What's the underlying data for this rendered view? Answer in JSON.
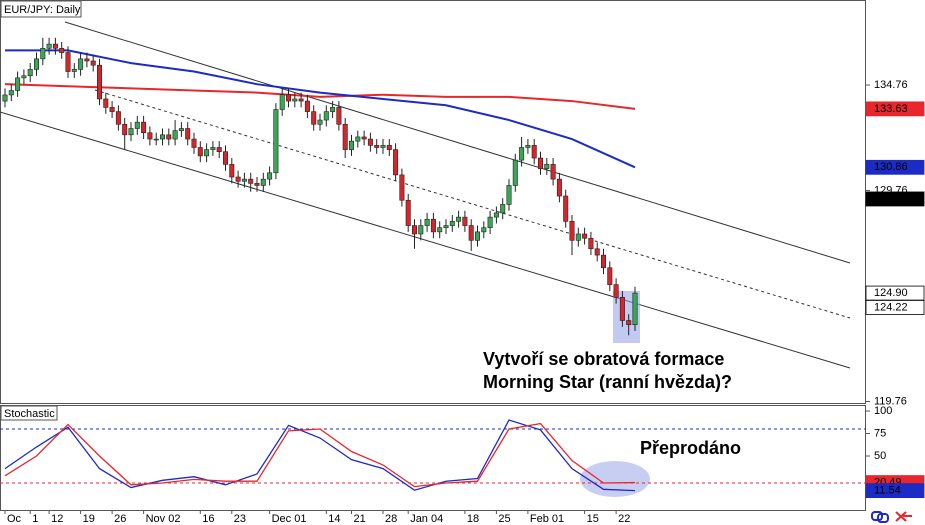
{
  "chart_data": [
    {
      "type": "candlestick",
      "title": "EUR/JPY: Daily",
      "categories": [
        "Oc",
        null,
        null,
        null,
        "1",
        null,
        null,
        "12",
        null,
        null,
        null,
        null,
        "19",
        null,
        null,
        null,
        null,
        "26",
        null,
        null,
        null,
        null,
        "Nov 02",
        null,
        null,
        null,
        null,
        null,
        null,
        null,
        null,
        "16",
        null,
        null,
        null,
        null,
        "23",
        null,
        null,
        null,
        null,
        null,
        "Dec 01",
        null,
        null,
        null,
        null,
        null,
        null,
        null,
        null,
        "14",
        null,
        null,
        null,
        "21",
        null,
        null,
        null,
        null,
        "28",
        null,
        null,
        null,
        "Jan 04",
        null,
        null,
        null,
        null,
        null,
        null,
        null,
        null,
        "18",
        null,
        null,
        null,
        null,
        "25",
        null,
        null,
        null,
        null,
        "Feb 01",
        null,
        null,
        null,
        null,
        null,
        null,
        null,
        null,
        "15",
        null,
        null,
        null,
        null,
        "22",
        null,
        null,
        null
      ],
      "open": [
        134.0,
        134.29,
        134.5,
        135.1,
        135.2,
        135.5,
        136.0,
        136.5,
        136.7,
        136.5,
        136.3,
        135.4,
        135.5,
        136.0,
        135.9,
        135.7,
        134.1,
        133.7,
        133.5,
        132.9,
        132.4,
        132.7,
        133.0,
        132.5,
        132.2,
        132.2,
        132.4,
        132.2,
        132.6,
        132.7,
        132.2,
        131.8,
        131.4,
        131.7,
        131.8,
        131.6,
        131.0,
        130.4,
        130.2,
        130.3,
        130.1,
        130.0,
        130.3,
        130.6,
        133.6,
        134.3,
        134.0,
        134.1,
        134.0,
        133.5,
        132.9,
        133.1,
        133.5,
        133.7,
        132.9,
        131.7,
        132.1,
        132.3,
        132.2,
        131.9,
        131.8,
        131.9,
        131.7,
        130.5,
        129.3,
        128.1,
        127.7,
        128.1,
        128.4,
        127.8,
        128.0,
        128.1,
        128.3,
        128.5,
        128.1,
        127.4,
        127.8,
        128.0,
        128.5,
        128.7,
        129.1,
        130.0,
        131.2,
        131.8,
        131.9,
        131.3,
        130.8,
        131.0,
        130.3,
        129.5,
        128.3,
        127.4,
        127.7,
        127.5,
        127.0,
        126.7,
        126.1,
        125.3,
        124.7,
        123.6,
        123.4
      ],
      "high": [
        134.6,
        134.8,
        135.4,
        135.5,
        135.8,
        136.3,
        137.0,
        137.0,
        137.0,
        136.8,
        136.6,
        135.8,
        136.3,
        136.3,
        136.2,
        136.0,
        134.4,
        134.0,
        133.8,
        133.2,
        133.0,
        133.3,
        133.3,
        132.8,
        132.5,
        132.7,
        132.7,
        133.1,
        133.0,
        133.0,
        132.5,
        132.1,
        132.0,
        132.1,
        132.1,
        131.9,
        131.3,
        130.7,
        130.6,
        130.6,
        130.4,
        130.6,
        130.9,
        133.9,
        134.6,
        134.6,
        134.4,
        134.4,
        134.3,
        133.8,
        133.4,
        133.8,
        134.0,
        134.0,
        133.2,
        132.4,
        132.6,
        132.6,
        132.5,
        132.2,
        132.2,
        132.2,
        132.0,
        130.8,
        129.6,
        128.4,
        128.4,
        128.7,
        128.7,
        128.3,
        128.4,
        128.6,
        128.8,
        128.8,
        128.4,
        128.1,
        128.3,
        128.8,
        129.0,
        129.4,
        130.3,
        131.5,
        132.3,
        132.2,
        132.2,
        131.6,
        131.3,
        131.3,
        130.6,
        129.8,
        128.6,
        128.0,
        128.0,
        127.8,
        127.3,
        127.0,
        126.4,
        125.6,
        125.0,
        123.9,
        125.2
      ],
      "low": [
        133.7,
        134.0,
        134.2,
        134.8,
        134.9,
        135.2,
        135.7,
        136.2,
        136.2,
        136.0,
        135.1,
        135.1,
        135.2,
        135.6,
        135.4,
        133.8,
        133.4,
        133.2,
        132.6,
        131.7,
        132.1,
        132.4,
        132.2,
        131.9,
        131.9,
        131.9,
        131.9,
        131.9,
        132.3,
        131.9,
        131.5,
        131.1,
        131.1,
        131.4,
        131.3,
        130.7,
        130.1,
        129.9,
        129.9,
        129.7,
        129.7,
        129.7,
        130.0,
        130.3,
        133.3,
        133.7,
        133.7,
        133.7,
        133.2,
        132.6,
        132.6,
        132.8,
        133.2,
        132.6,
        131.3,
        131.4,
        131.8,
        131.9,
        131.6,
        131.5,
        131.5,
        131.4,
        130.2,
        129.0,
        127.8,
        127.0,
        127.4,
        127.8,
        127.5,
        127.5,
        127.7,
        127.8,
        128.0,
        127.8,
        126.9,
        127.1,
        127.5,
        127.7,
        128.2,
        128.4,
        128.8,
        129.7,
        130.9,
        131.5,
        131.0,
        130.5,
        130.5,
        130.0,
        129.2,
        128.0,
        126.7,
        127.1,
        127.2,
        126.7,
        126.4,
        125.8,
        125.0,
        124.4,
        123.3,
        122.9,
        123.1
      ],
      "close": [
        134.29,
        134.5,
        135.1,
        135.2,
        135.5,
        136.0,
        136.5,
        136.7,
        136.5,
        136.3,
        135.4,
        135.5,
        136.0,
        135.9,
        135.7,
        134.1,
        133.7,
        133.5,
        132.9,
        132.4,
        132.7,
        133.0,
        132.5,
        132.2,
        132.2,
        132.4,
        132.2,
        132.6,
        132.7,
        132.2,
        131.8,
        131.4,
        131.7,
        131.8,
        131.6,
        131.0,
        130.4,
        130.2,
        130.3,
        130.1,
        130.0,
        130.3,
        130.6,
        133.6,
        134.3,
        134.0,
        134.1,
        134.0,
        133.5,
        132.9,
        133.1,
        133.5,
        133.7,
        132.9,
        131.7,
        132.1,
        132.3,
        132.2,
        131.9,
        131.8,
        131.9,
        131.7,
        130.5,
        129.3,
        128.1,
        127.7,
        128.1,
        128.4,
        127.8,
        128.0,
        128.1,
        128.3,
        128.5,
        128.1,
        127.4,
        127.8,
        128.0,
        128.5,
        128.7,
        129.1,
        130.0,
        131.2,
        131.8,
        131.9,
        131.3,
        130.8,
        131.0,
        130.3,
        129.5,
        128.3,
        127.4,
        127.7,
        127.5,
        127.0,
        126.7,
        126.1,
        125.3,
        124.7,
        123.6,
        123.4,
        124.9
      ],
      "up_color": "#3aa757",
      "down_color": "#d7262b",
      "series": [
        {
          "color": "#e8262b",
          "x": [
            0,
            10,
            20,
            30,
            40,
            50,
            60,
            70,
            80,
            90,
            100
          ],
          "values": [
            134.8,
            134.7,
            134.6,
            134.5,
            134.4,
            134.2,
            134.3,
            134.2,
            134.2,
            134.0,
            133.63
          ]
        },
        {
          "color": "#1c2bc4",
          "x": [
            0,
            10,
            20,
            30,
            40,
            50,
            60,
            70,
            80,
            90,
            100
          ],
          "values": [
            136.4,
            136.4,
            135.8,
            135.4,
            134.8,
            134.4,
            134.1,
            133.8,
            133.1,
            132.2,
            130.86
          ]
        }
      ],
      "ylim": [
        119.69,
        138.79
      ],
      "yticks": [
        134.76,
        129.76,
        119.76
      ],
      "markers": [
        {
          "value": 133.63,
          "color": "#e8262b",
          "text_color": "#ffffff"
        },
        {
          "value": 130.86,
          "color": "#1c2bc4",
          "text_color": "#ffffff"
        },
        {
          "value": 129.36,
          "color": "#000000",
          "text_color": "#ffffff"
        },
        {
          "value": 124.9,
          "label": "124.90",
          "color": "#ffffff",
          "text_color": "#000000"
        },
        {
          "value": 124.22,
          "color": "#ffffff",
          "text_color": "#000000"
        }
      ],
      "annotations": [
        "Vytvoří se obratová formace",
        "Morning Star (ranní hvězda)?"
      ]
    },
    {
      "type": "line",
      "title": "Stochastic",
      "x": [
        0,
        5,
        10,
        15,
        20,
        25,
        30,
        35,
        40,
        45,
        50,
        55,
        60,
        65,
        70,
        75,
        80,
        85,
        90,
        95,
        100
      ],
      "series": [
        {
          "color": "#1c2bc4",
          "values": [
            36,
            60,
            82,
            36,
            15,
            23,
            27,
            18,
            30,
            84,
            70,
            46,
            36,
            12,
            22,
            25,
            90,
            79,
            36,
            13,
            11.54
          ]
        },
        {
          "color": "#e8262b",
          "values": [
            28,
            50,
            85,
            50,
            18,
            20,
            24,
            22,
            22,
            78,
            80,
            55,
            40,
            16,
            20,
            22,
            80,
            86,
            45,
            20,
            20.49
          ]
        }
      ],
      "levels": [
        {
          "value": 80,
          "color": "#1c2bc4"
        },
        {
          "value": 20,
          "color": "#e8262b"
        }
      ],
      "ylim": [
        -10,
        106.7
      ],
      "yticks": [
        100,
        75,
        50
      ],
      "markers": [
        {
          "value": 20.49,
          "color": "#e8262b",
          "text_color": "#ffffff"
        },
        {
          "value": 11.54,
          "color": "#1c2bc4",
          "text_color": "#ffffff"
        }
      ],
      "annotation": "Přeprodáno"
    }
  ]
}
